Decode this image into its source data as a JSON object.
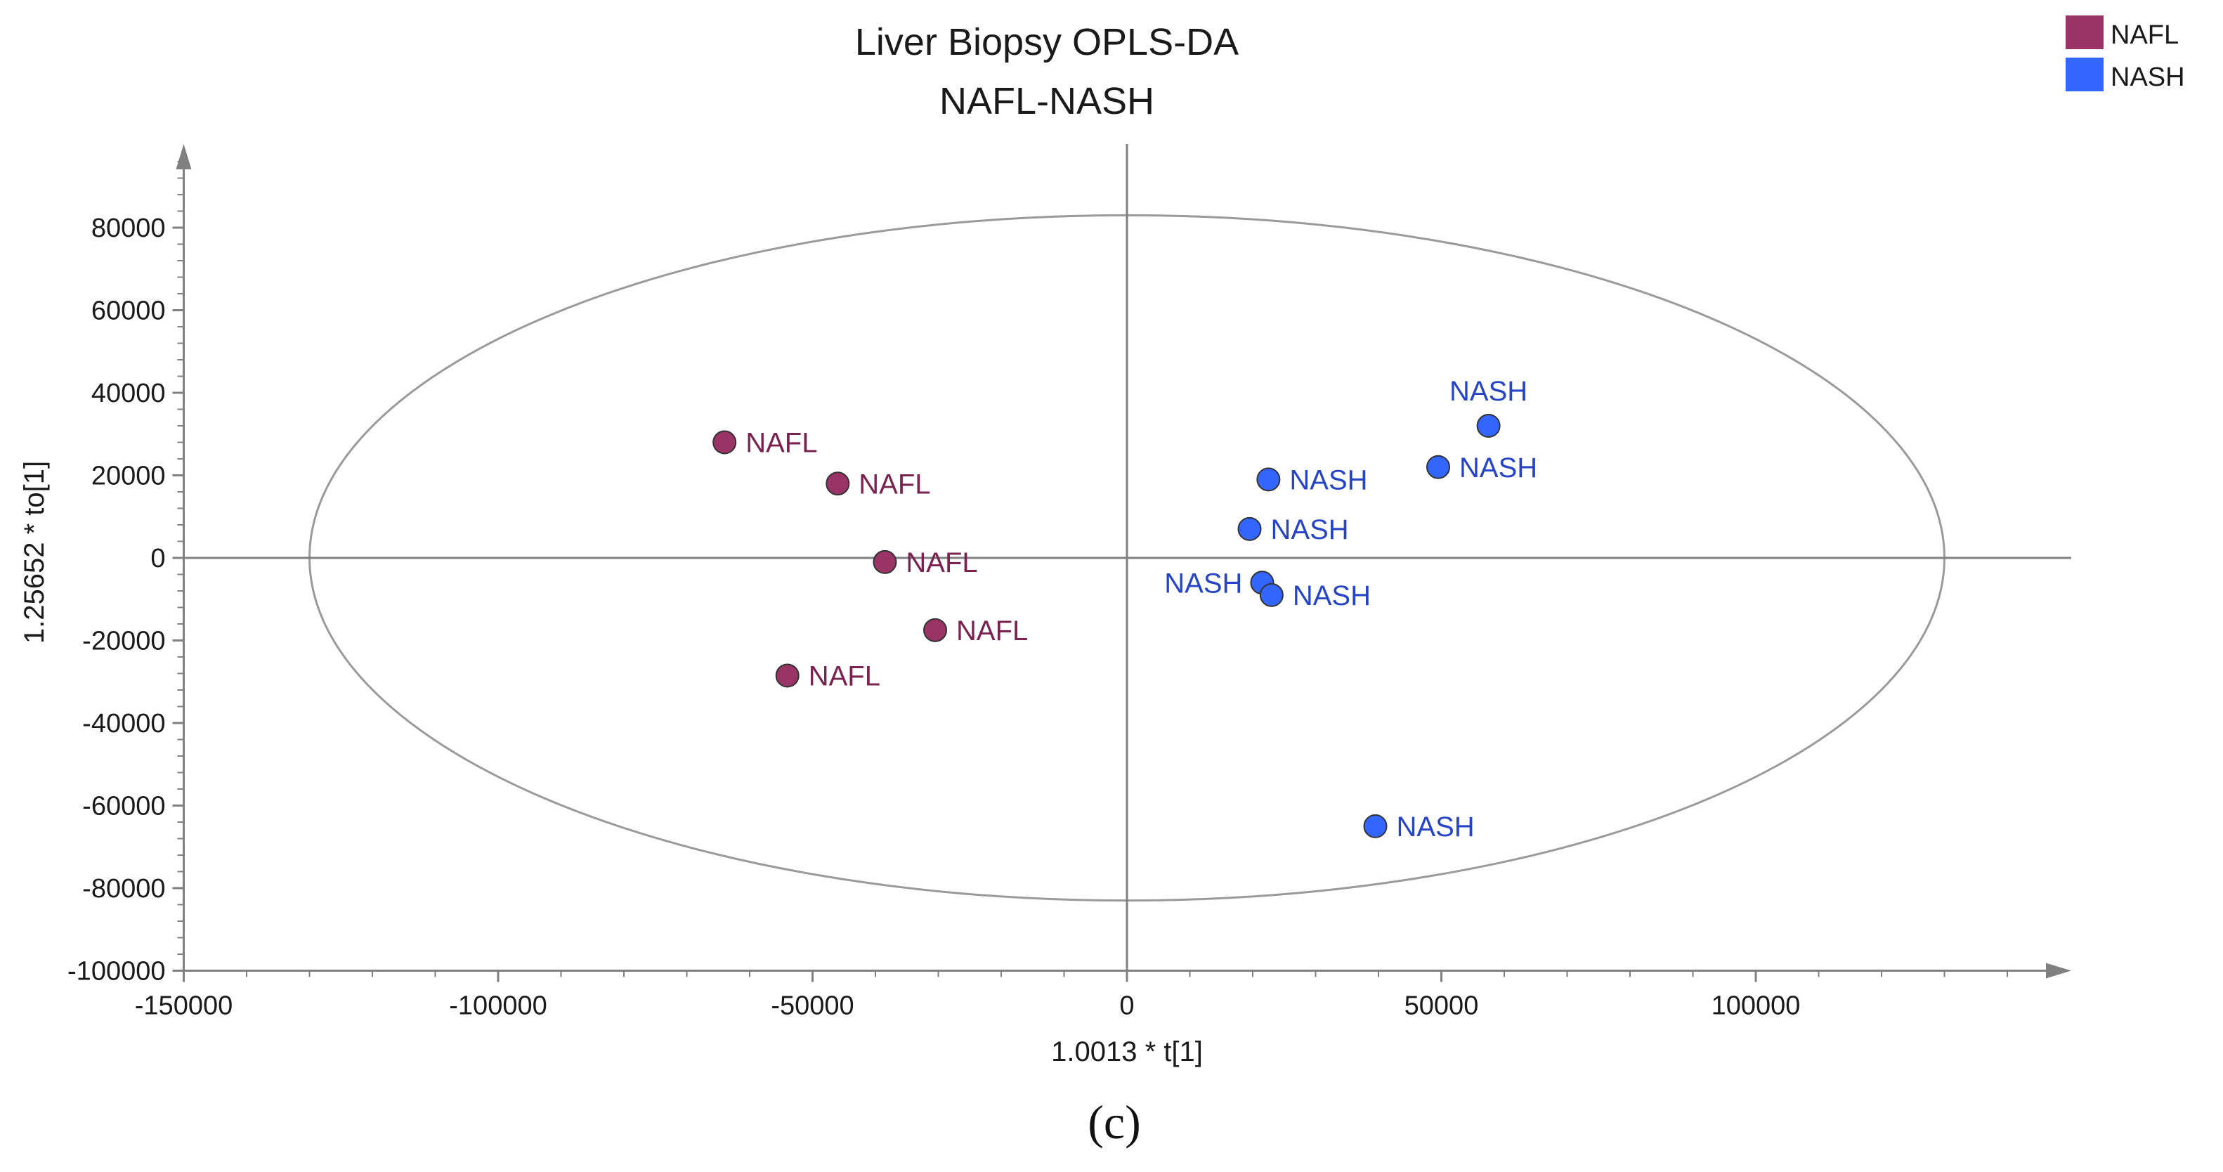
{
  "colors": {
    "NAFL": "#9a3366",
    "NAFL_label": "#7a2250",
    "NASH": "#3366ff",
    "NASH_label": "#2645c6",
    "axis": "#808080",
    "ellipse": "#9a9a9a",
    "text": "#1a1a1a"
  },
  "chart_data": {
    "type": "scatter",
    "title": "Liver Biopsy OPLS-DA",
    "subtitle": "NAFL-NASH",
    "xlabel": "1.0013 * t[1]",
    "ylabel": "1.25652 * to[1]",
    "xlim": [
      -150000,
      150000
    ],
    "ylim": [
      -100000,
      100000
    ],
    "xticks": [
      -150000,
      -100000,
      -50000,
      0,
      50000,
      100000
    ],
    "yticks": [
      -100000,
      -80000,
      -60000,
      -40000,
      -20000,
      0,
      20000,
      40000,
      60000,
      80000
    ],
    "xtick_labels": [
      "-150000",
      "-100000",
      "-50000",
      "0",
      "50000",
      "100000"
    ],
    "ytick_labels": [
      "-100000",
      "-80000",
      "-60000",
      "-40000",
      "-20000",
      "0",
      "20000",
      "40000",
      "60000",
      "80000"
    ],
    "grid": false,
    "legend_position": "top-right",
    "ellipse": {
      "center": [
        0,
        0
      ],
      "rx": 130000,
      "ry": 83000
    },
    "series": [
      {
        "name": "NAFL",
        "points": [
          {
            "x": -64000,
            "y": 28000,
            "label": "NAFL"
          },
          {
            "x": -46000,
            "y": 18000,
            "label": "NAFL"
          },
          {
            "x": -38500,
            "y": -1000,
            "label": "NAFL"
          },
          {
            "x": -30500,
            "y": -17500,
            "label": "NAFL"
          },
          {
            "x": -54000,
            "y": -28500,
            "label": "NAFL"
          }
        ]
      },
      {
        "name": "NASH",
        "points": [
          {
            "x": 57500,
            "y": 32000,
            "label": "NASH"
          },
          {
            "x": 49500,
            "y": 22000,
            "label": "NASH"
          },
          {
            "x": 22500,
            "y": 19000,
            "label": "NASH"
          },
          {
            "x": 19500,
            "y": 7000,
            "label": "NASH"
          },
          {
            "x": 21500,
            "y": -6000,
            "label": "NASH"
          },
          {
            "x": 23000,
            "y": -9000,
            "label": "NASH"
          },
          {
            "x": 39500,
            "y": -65000,
            "label": "NASH"
          }
        ]
      }
    ]
  },
  "caption": "(c)"
}
